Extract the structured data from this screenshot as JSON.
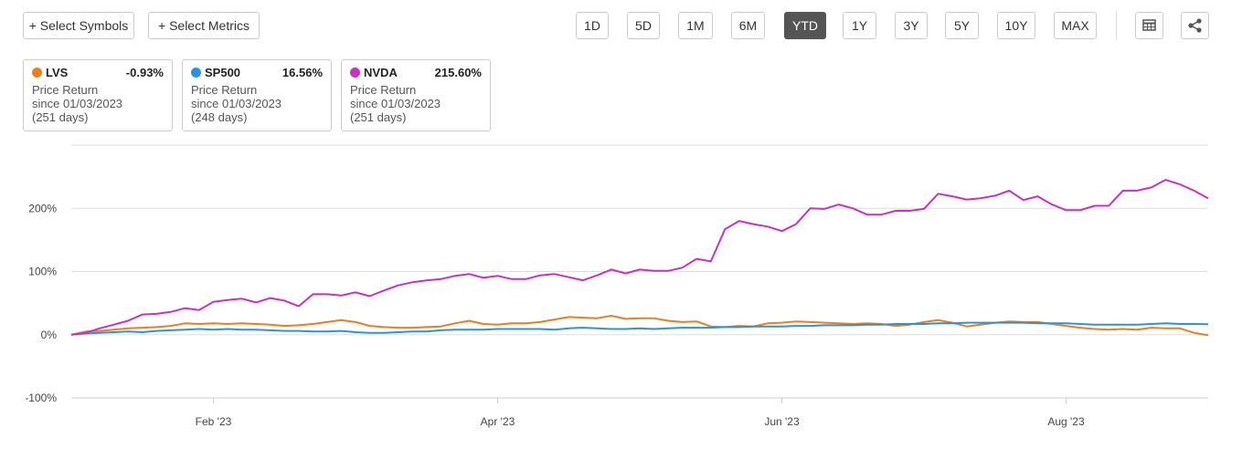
{
  "toolbar": {
    "buttons": [
      "+ Select Symbols",
      "+ Select Metrics"
    ],
    "ranges": [
      "1D",
      "5D",
      "1M",
      "6M",
      "YTD",
      "1Y",
      "3Y",
      "5Y",
      "10Y",
      "MAX"
    ],
    "active_range": "YTD"
  },
  "chart_data": {
    "type": "line",
    "categories": [
      null,
      null,
      null,
      null,
      null,
      null,
      null,
      null,
      null,
      null,
      "Feb '23",
      null,
      null,
      null,
      null,
      null,
      null,
      null,
      null,
      null,
      null,
      null,
      null,
      null,
      null,
      null,
      null,
      null,
      null,
      null,
      "Apr '23",
      null,
      null,
      null,
      null,
      null,
      null,
      null,
      null,
      null,
      null,
      null,
      null,
      null,
      null,
      null,
      null,
      null,
      null,
      null,
      "Jun '23",
      null,
      null,
      null,
      null,
      null,
      null,
      null,
      null,
      null,
      null,
      null,
      null,
      null,
      null,
      null,
      null,
      null,
      null,
      null,
      "Aug '23",
      null,
      null,
      null,
      null,
      null,
      null,
      null,
      null,
      null,
      null
    ],
    "series": [
      {
        "name": "LVS",
        "color": "#ee7d1c",
        "return": "-0.93%",
        "metric": "Price Return",
        "since": "since 01/03/2023",
        "days": "(251 days)",
        "values": [
          0,
          5,
          6,
          8,
          10,
          11,
          12,
          14,
          18,
          17,
          18,
          17,
          18,
          17,
          16,
          14,
          15,
          17,
          20,
          23,
          20,
          14,
          12,
          11,
          11,
          12,
          13,
          18,
          22,
          17,
          16,
          18,
          18,
          20,
          24,
          28,
          27,
          26,
          30,
          25,
          26,
          26,
          22,
          20,
          21,
          13,
          12,
          14,
          13,
          18,
          19,
          21,
          20,
          19,
          18,
          17,
          18,
          17,
          14,
          16,
          20,
          23,
          19,
          13,
          16,
          19,
          21,
          20,
          20,
          17,
          14,
          11,
          9,
          8,
          9,
          8,
          11,
          10,
          10,
          3,
          -0.93
        ]
      },
      {
        "name": "SP500",
        "color": "#2a93e0",
        "return": "16.56%",
        "metric": "Price Return",
        "since": "since 01/03/2023",
        "days": "(248 days)",
        "values": [
          0,
          2,
          3,
          4,
          5,
          4,
          6,
          7,
          8,
          9,
          8,
          9,
          8,
          8,
          7,
          6,
          6,
          5,
          5,
          6,
          4,
          3,
          3,
          4,
          5,
          5,
          7,
          8,
          8,
          8,
          9,
          9,
          9,
          9,
          8,
          10,
          11,
          10,
          9,
          9,
          10,
          9,
          10,
          11,
          11,
          11,
          12,
          12,
          13,
          13,
          13,
          14,
          14,
          15,
          15,
          15,
          16,
          16,
          17,
          17,
          17,
          18,
          18,
          19,
          19,
          19,
          19,
          19,
          18,
          18,
          18,
          17,
          16,
          16,
          16,
          16,
          17,
          18,
          17,
          17,
          16.56
        ]
      },
      {
        "name": "NVDA",
        "color": "#cc2fc4",
        "return": "215.60%",
        "metric": "Price Return",
        "since": "since 01/03/2023",
        "days": "(251 days)",
        "values": [
          0,
          3,
          10,
          16,
          22,
          32,
          33,
          36,
          42,
          39,
          52,
          55,
          57,
          51,
          58,
          54,
          45,
          64,
          64,
          62,
          67,
          61,
          70,
          78,
          83,
          86,
          88,
          93,
          96,
          90,
          93,
          88,
          88,
          94,
          96,
          91,
          86,
          94,
          103,
          97,
          103,
          101,
          101,
          106,
          120,
          116,
          167,
          180,
          175,
          171,
          164,
          175,
          200,
          199,
          206,
          200,
          190,
          190,
          196,
          196,
          199,
          223,
          219,
          214,
          216,
          220,
          228,
          213,
          219,
          206,
          197,
          197,
          204,
          204,
          228,
          228,
          233,
          245,
          238,
          228,
          215.6
        ]
      }
    ],
    "ylim": [
      -100,
      300
    ],
    "yticks": [
      {
        "value": -100,
        "label": "-100%"
      },
      {
        "value": 0,
        "label": "0%"
      },
      {
        "value": 100,
        "label": "100%"
      },
      {
        "value": 200,
        "label": "200%"
      }
    ],
    "grid": true
  }
}
